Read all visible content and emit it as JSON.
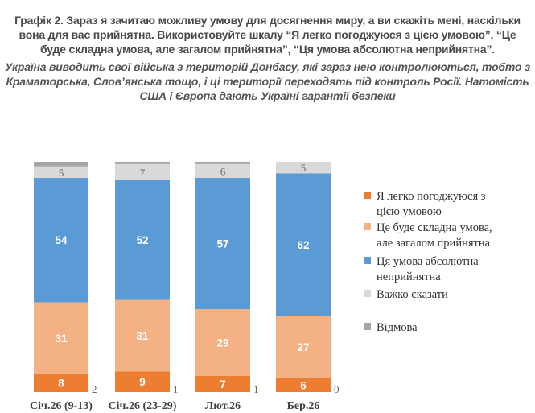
{
  "title": "Графік 2. Зараз я зачитаю можливу умову для досягнення миру, а ви скажіть мені, наскільки вона для вас прийнятна. Використовуйте шкалу “Я легко погоджуюся з цією умовою”, “Це буде складна умова, але загалом прийнятна”, “Ця умова абсолютна неприйнятна”.",
  "subtitle": "Україна виводить свої війська з територій Донбасу, які зараз нею контролюються, тобто з Краматорська, Слов’янська тощо, і ці території переходять під контроль Росії. Натомість США і Європа дають Україні гарантії безпеки",
  "chart_data": {
    "type": "bar",
    "stacked": true,
    "categories": [
      "Січ.26 (9-13)",
      "Січ.26 (23-29)",
      "Лют.26",
      "Бер.26"
    ],
    "series": [
      {
        "name": "Я легко погоджуюся з цією умовою",
        "color": "#ED7D31",
        "values": [
          8,
          9,
          7,
          6
        ]
      },
      {
        "name": "Це буде складна умова, але загалом прийнятна",
        "color": "#F4B183",
        "values": [
          31,
          31,
          29,
          27
        ]
      },
      {
        "name": "Ця умова абсолютна неприйнятна",
        "color": "#5B9BD5",
        "values": [
          54,
          52,
          57,
          62
        ]
      },
      {
        "name": "Важко сказати",
        "color": "#D9D9D9",
        "values": [
          5,
          7,
          6,
          5
        ]
      },
      {
        "name": "Відмова",
        "color": "#A5A5A5",
        "values": [
          2,
          1,
          1,
          0
        ]
      }
    ],
    "legend_position": "right",
    "grid": false,
    "ylim": [
      0,
      100
    ]
  }
}
